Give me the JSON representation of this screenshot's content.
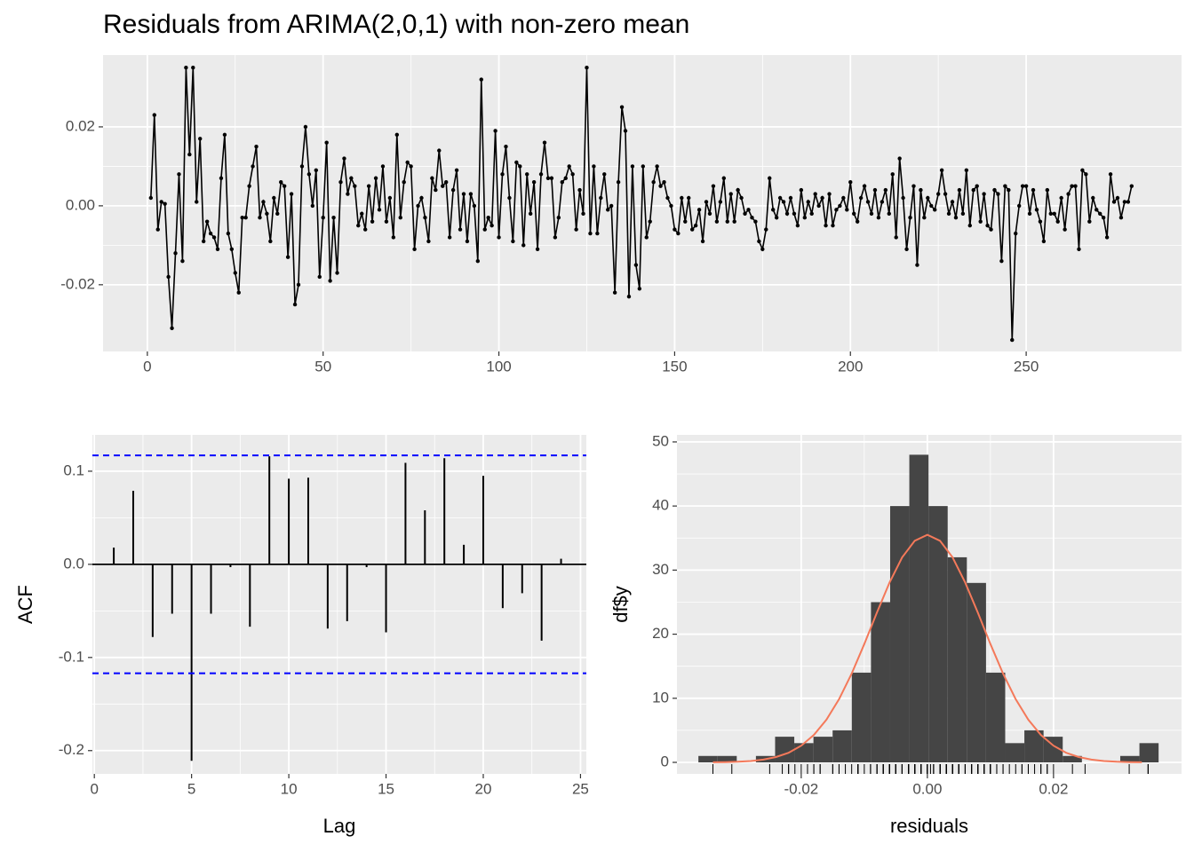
{
  "chart_data": [
    {
      "type": "line",
      "title": "Residuals from ARIMA(2,0,1) with non-zero mean",
      "color": "#000000",
      "x": [
        1,
        2,
        3,
        4,
        5,
        6,
        7,
        8,
        9,
        10,
        11,
        12,
        13,
        14,
        15,
        16,
        17,
        18,
        19,
        20,
        21,
        22,
        23,
        24,
        25,
        26,
        27,
        28,
        29,
        30,
        31,
        32,
        33,
        34,
        35,
        36,
        37,
        38,
        39,
        40,
        41,
        42,
        43,
        44,
        45,
        46,
        47,
        48,
        49,
        50,
        51,
        52,
        53,
        54,
        55,
        56,
        57,
        58,
        59,
        60,
        61,
        62,
        63,
        64,
        65,
        66,
        67,
        68,
        69,
        70,
        71,
        72,
        73,
        74,
        75,
        76,
        77,
        78,
        79,
        80,
        81,
        82,
        83,
        84,
        85,
        86,
        87,
        88,
        89,
        90,
        91,
        92,
        93,
        94,
        95,
        96,
        97,
        98,
        99,
        100,
        101,
        102,
        103,
        104,
        105,
        106,
        107,
        108,
        109,
        110,
        111,
        112,
        113,
        114,
        115,
        116,
        117,
        118,
        119,
        120,
        121,
        122,
        123,
        124,
        125,
        126,
        127,
        128,
        129,
        130,
        131,
        132,
        133,
        134,
        135,
        136,
        137,
        138,
        139,
        140,
        141,
        142,
        143,
        144,
        145,
        146,
        147,
        148,
        149,
        150,
        151,
        152,
        153,
        154,
        155,
        156,
        157,
        158,
        159,
        160,
        161,
        162,
        163,
        164,
        165,
        166,
        167,
        168,
        169,
        170,
        171,
        172,
        173,
        174,
        175,
        176,
        177,
        178,
        179,
        180,
        181,
        182,
        183,
        184,
        185,
        186,
        187,
        188,
        189,
        190,
        191,
        192,
        193,
        194,
        195,
        196,
        197,
        198,
        199,
        200,
        201,
        202,
        203,
        204,
        205,
        206,
        207,
        208,
        209,
        210,
        211,
        212,
        213,
        214,
        215,
        216,
        217,
        218,
        219,
        220,
        221,
        222,
        223,
        224,
        225,
        226,
        227,
        228,
        229,
        230,
        231,
        232,
        233,
        234,
        235,
        236,
        237,
        238,
        239,
        240,
        241,
        242,
        243,
        244,
        245,
        246,
        247,
        248,
        249,
        250,
        251,
        252,
        253,
        254,
        255,
        256,
        257,
        258,
        259,
        260,
        261,
        262,
        263,
        264,
        265,
        266,
        267,
        268,
        269,
        270,
        271,
        272,
        273,
        274,
        275,
        276,
        277,
        278,
        279,
        280
      ],
      "values": [
        0.002,
        0.023,
        -0.006,
        0.001,
        0.0005,
        -0.018,
        -0.031,
        -0.012,
        0.008,
        -0.014,
        0.035,
        0.013,
        0.035,
        0.001,
        0.017,
        -0.009,
        -0.004,
        -0.007,
        -0.008,
        -0.011,
        0.007,
        0.018,
        -0.007,
        -0.011,
        -0.017,
        -0.022,
        -0.003,
        -0.003,
        0.005,
        0.01,
        0.015,
        -0.003,
        0.001,
        -0.002,
        -0.009,
        0.002,
        -0.002,
        0.006,
        0.005,
        -0.013,
        0.003,
        -0.025,
        -0.02,
        0.01,
        0.02,
        0.008,
        0.0,
        0.009,
        -0.018,
        -0.003,
        0.016,
        -0.019,
        -0.003,
        -0.017,
        0.006,
        0.012,
        0.003,
        0.007,
        0.005,
        -0.005,
        -0.002,
        -0.006,
        0.005,
        -0.004,
        0.007,
        -0.001,
        0.01,
        -0.004,
        0.002,
        -0.008,
        0.018,
        -0.003,
        0.006,
        0.011,
        0.01,
        -0.011,
        0.0,
        0.002,
        -0.003,
        -0.009,
        0.007,
        0.004,
        0.014,
        0.005,
        0.006,
        -0.008,
        0.004,
        0.009,
        -0.006,
        0.003,
        -0.009,
        0.003,
        0.0,
        -0.014,
        0.032,
        -0.006,
        -0.003,
        -0.005,
        0.019,
        -0.008,
        0.008,
        0.015,
        0.002,
        -0.009,
        0.011,
        0.01,
        -0.01,
        0.008,
        -0.002,
        0.006,
        -0.011,
        0.008,
        0.016,
        0.007,
        0.007,
        -0.008,
        -0.003,
        0.006,
        0.007,
        0.01,
        0.008,
        -0.006,
        0.004,
        -0.002,
        0.035,
        -0.007,
        0.01,
        -0.007,
        0.002,
        0.008,
        -0.001,
        0.0,
        -0.022,
        0.006,
        0.025,
        0.019,
        -0.023,
        0.01,
        -0.015,
        -0.021,
        0.01,
        -0.008,
        -0.004,
        0.006,
        0.01,
        0.005,
        0.006,
        0.002,
        0.0,
        -0.006,
        -0.007,
        0.002,
        -0.004,
        0.002,
        -0.006,
        -0.005,
        -0.001,
        -0.009,
        0.001,
        -0.002,
        0.005,
        -0.004,
        0.001,
        0.007,
        -0.004,
        0.003,
        -0.004,
        0.004,
        0.002,
        -0.002,
        -0.001,
        -0.003,
        -0.004,
        -0.009,
        -0.011,
        -0.006,
        0.007,
        -0.001,
        -0.003,
        0.002,
        0.001,
        -0.002,
        0.002,
        -0.002,
        -0.005,
        0.004,
        -0.003,
        0.001,
        -0.002,
        0.003,
        0.0,
        0.002,
        -0.005,
        0.003,
        -0.005,
        -0.001,
        0.0,
        0.002,
        -0.001,
        0.006,
        -0.002,
        -0.004,
        0.002,
        0.005,
        0.001,
        -0.002,
        0.004,
        -0.003,
        0.001,
        0.004,
        -0.002,
        0.008,
        -0.008,
        0.012,
        0.002,
        -0.011,
        -0.003,
        0.005,
        -0.015,
        0.004,
        -0.003,
        0.002,
        0.0,
        -0.001,
        0.003,
        0.009,
        0.003,
        -0.002,
        0.001,
        -0.003,
        0.004,
        -0.002,
        0.009,
        -0.005,
        0.004,
        0.005,
        -0.004,
        0.003,
        -0.005,
        -0.006,
        0.004,
        0.003,
        -0.014,
        0.005,
        0.004,
        -0.034,
        -0.007,
        0.0,
        0.005,
        0.005,
        -0.002,
        0.004,
        -0.001,
        -0.004,
        -0.009,
        0.004,
        -0.002,
        -0.002,
        -0.004,
        0.002,
        -0.006,
        0.003,
        0.005,
        0.005,
        -0.011,
        0.009,
        0.008,
        -0.004,
        0.002,
        -0.001,
        -0.002,
        -0.003,
        -0.008,
        0.008,
        0.001,
        0.002,
        -0.003,
        0.001,
        0.001,
        0.005
      ],
      "xlim": [
        -12.6,
        294.2
      ],
      "xticks": [
        0,
        50,
        100,
        150,
        200,
        250
      ],
      "ylim": [
        -0.0369,
        0.0382
      ],
      "yticks": [
        {
          "value": -0.02,
          "label": "-0.02"
        },
        {
          "value": 0,
          "label": "0.00"
        },
        {
          "value": 0.02,
          "label": "0.02"
        }
      ],
      "grid": true
    },
    {
      "type": "acf",
      "x_label": "Lag",
      "y_label": "ACF",
      "color": "#000000",
      "x": [
        1,
        2,
        3,
        4,
        5,
        6,
        7,
        8,
        9,
        10,
        11,
        12,
        13,
        14,
        15,
        16,
        17,
        18,
        19,
        20,
        21,
        22,
        23,
        24
      ],
      "values": [
        0.018,
        0.079,
        -0.078,
        -0.053,
        -0.211,
        -0.053,
        -0.003,
        -0.067,
        0.116,
        0.092,
        0.093,
        -0.069,
        -0.061,
        -0.003,
        -0.073,
        0.109,
        0.058,
        0.114,
        0.021,
        0.095,
        -0.047,
        -0.031,
        -0.082,
        0.006
      ],
      "confidence_limits": [
        -0.117,
        0.117
      ],
      "confidence_color": "#0000ff",
      "xlim": [
        -0.1,
        25.3
      ],
      "xticks": [
        0,
        5,
        10,
        15,
        20,
        25
      ],
      "ylim": [
        -0.225,
        0.139
      ],
      "yticks": [
        {
          "value": -0.2,
          "label": "-0.2"
        },
        {
          "value": -0.1,
          "label": "-0.1"
        },
        {
          "value": 0,
          "label": "0.0"
        },
        {
          "value": 0.1,
          "label": "0.1"
        }
      ],
      "grid": true
    },
    {
      "type": "histogram",
      "x_label": "residuals",
      "y_label": "df$y",
      "color": "#454545",
      "bins": [
        -0.0363,
        -0.03326,
        -0.03022,
        -0.02718,
        -0.02414,
        -0.0211,
        -0.01806,
        -0.01502,
        -0.01198,
        -0.00894,
        -0.0059,
        -0.00286,
        0.00018,
        0.00322,
        0.00626,
        0.0093,
        0.01234,
        0.01538,
        0.01842,
        0.02146,
        0.0245,
        0.02754,
        0.03058,
        0.03362,
        0.03666
      ],
      "values": [
        1,
        1,
        0,
        1,
        4,
        3,
        4,
        5,
        14,
        25,
        40,
        48,
        40,
        32,
        28,
        14,
        3,
        5,
        4,
        1,
        0,
        0,
        1,
        3
      ],
      "curve": {
        "color": "#f4795a",
        "x": [
          -0.034,
          -0.032,
          -0.03,
          -0.028,
          -0.026,
          -0.024,
          -0.022,
          -0.02,
          -0.018,
          -0.016,
          -0.014,
          -0.012,
          -0.01,
          -0.008,
          -0.006,
          -0.004,
          -0.002,
          0,
          0.002,
          0.004,
          0.006,
          0.008,
          0.01,
          0.012,
          0.014,
          0.016,
          0.018,
          0.02,
          0.022,
          0.024,
          0.026,
          0.028,
          0.03,
          0.032,
          0.034
        ],
        "values": [
          0.02,
          0.04,
          0.1,
          0.21,
          0.43,
          0.83,
          1.5,
          2.6,
          4.27,
          6.66,
          9.86,
          13.85,
          18.46,
          23.37,
          28.05,
          31.98,
          34.58,
          35.5,
          34.58,
          31.98,
          28.05,
          23.37,
          18.46,
          13.85,
          9.86,
          6.66,
          4.27,
          2.6,
          1.5,
          0.83,
          0.43,
          0.21,
          0.1,
          0.04,
          0.02
        ]
      },
      "rug_color": "#000000",
      "xlim": [
        -0.0397,
        0.0403
      ],
      "xticks": [
        {
          "value": -0.02,
          "label": "-0.02"
        },
        {
          "value": 0,
          "label": "0.00"
        },
        {
          "value": 0.02,
          "label": "0.02"
        }
      ],
      "ylim": [
        -1.8,
        51.1
      ],
      "yticks": [
        0,
        10,
        20,
        30,
        40,
        50
      ],
      "grid": true
    }
  ]
}
